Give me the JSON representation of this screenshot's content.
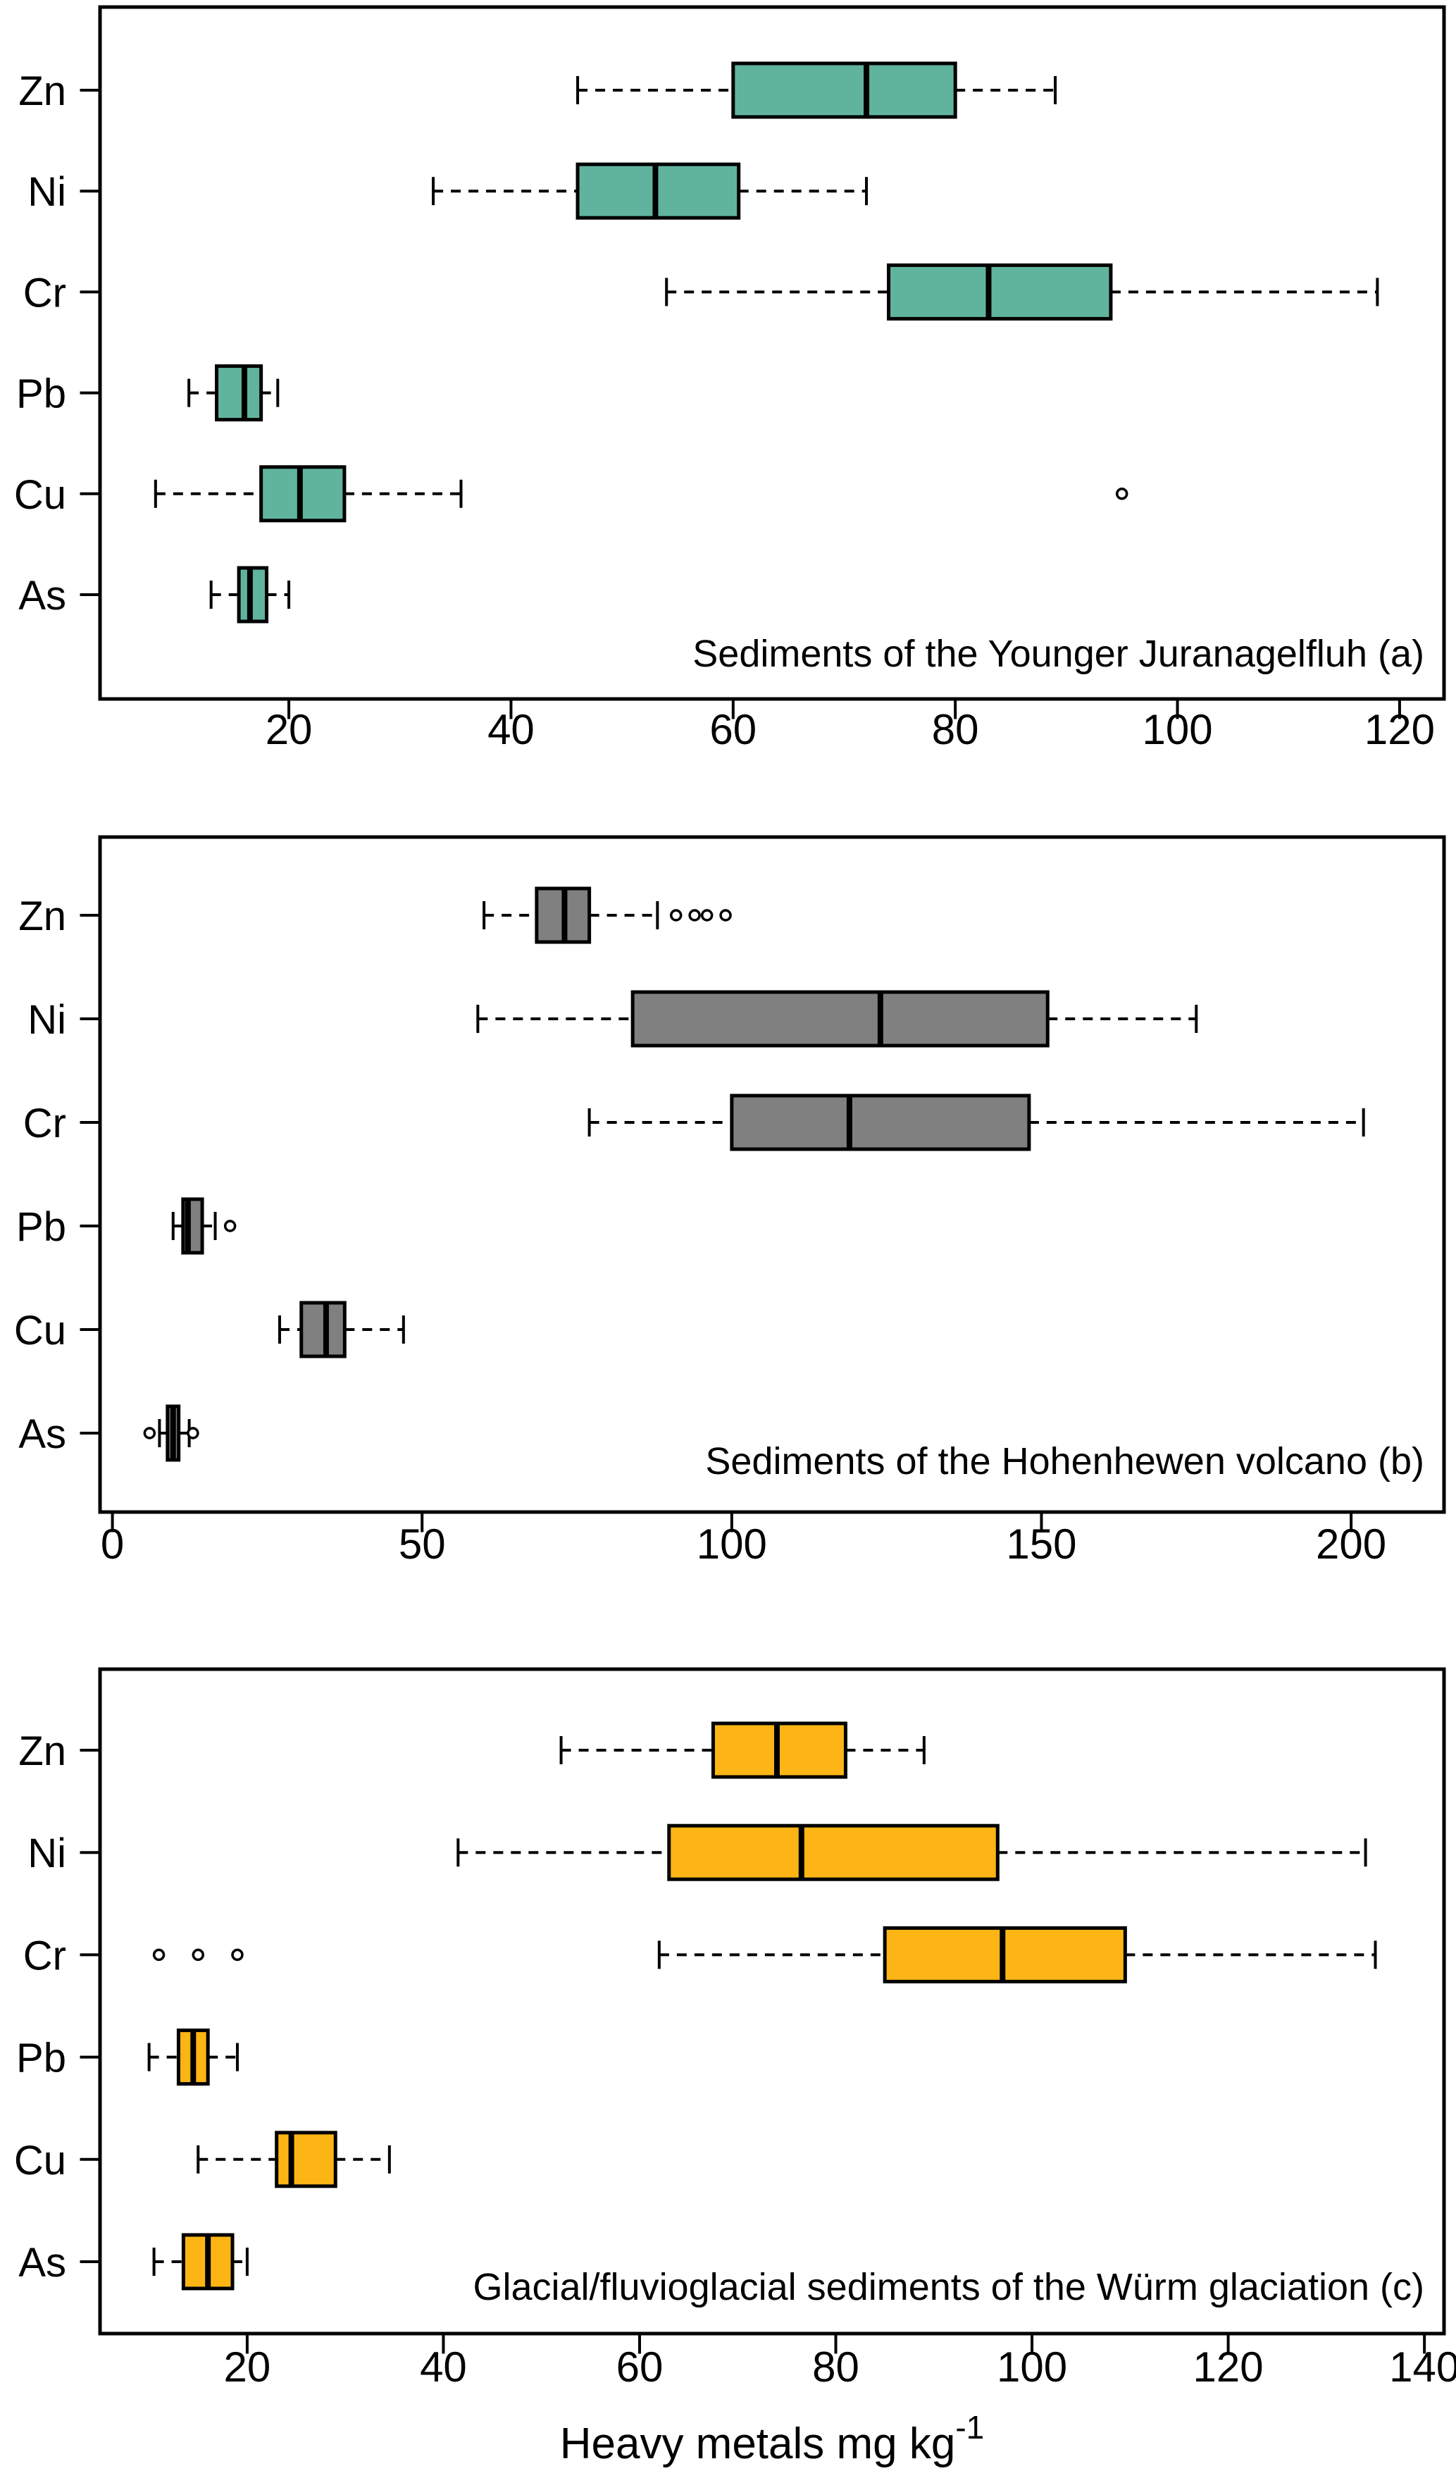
{
  "figure": {
    "background": "#ffffff",
    "line_color": "#000000",
    "x_axis_label": {
      "text": "Heavy metals mg kg",
      "superscript": "-1"
    }
  },
  "chart_data": [
    {
      "type": "boxplot",
      "orientation": "horizontal",
      "panel_letter": "a",
      "title": "Sediments of the Younger Juranagelfluh (a)",
      "box_fill": "#60B49E",
      "line_color": "#000000",
      "grid": false,
      "xlim": [
        3,
        124
      ],
      "xticks": [
        20,
        40,
        60,
        80,
        100,
        120
      ],
      "categories_top_to_bottom": [
        "Zn",
        "Ni",
        "Cr",
        "Pb",
        "Cu",
        "As"
      ],
      "stats": [
        {
          "category": "Zn",
          "whisker_low": 46,
          "q1": 60,
          "median": 72,
          "q3": 80,
          "whisker_high": 89,
          "outliers": []
        },
        {
          "category": "Ni",
          "whisker_low": 33,
          "q1": 46,
          "median": 53,
          "q3": 60.5,
          "whisker_high": 72,
          "outliers": []
        },
        {
          "category": "Cr",
          "whisker_low": 54,
          "q1": 74,
          "median": 83,
          "q3": 94,
          "whisker_high": 118,
          "outliers": []
        },
        {
          "category": "Pb",
          "whisker_low": 11,
          "q1": 13.5,
          "median": 16,
          "q3": 17.5,
          "whisker_high": 19,
          "outliers": []
        },
        {
          "category": "Cu",
          "whisker_low": 8,
          "q1": 17.5,
          "median": 21,
          "q3": 25,
          "whisker_high": 35.5,
          "outliers": [
            95
          ]
        },
        {
          "category": "As",
          "whisker_low": 13,
          "q1": 15.5,
          "median": 16.5,
          "q3": 18,
          "whisker_high": 20,
          "outliers": []
        }
      ]
    },
    {
      "type": "boxplot",
      "orientation": "horizontal",
      "panel_letter": "b",
      "title": "Sediments of the Hohenhewen volcano (b)",
      "box_fill": "#808080",
      "line_color": "#000000",
      "grid": false,
      "xlim": [
        -2,
        215
      ],
      "xticks": [
        0,
        50,
        100,
        150,
        200
      ],
      "categories_top_to_bottom": [
        "Zn",
        "Ni",
        "Cr",
        "Pb",
        "Cu",
        "As"
      ],
      "stats": [
        {
          "category": "Zn",
          "whisker_low": 60,
          "q1": 68.5,
          "median": 73,
          "q3": 77,
          "whisker_high": 88,
          "outliers": [
            91,
            94,
            96,
            99
          ]
        },
        {
          "category": "Ni",
          "whisker_low": 59,
          "q1": 84,
          "median": 124,
          "q3": 151,
          "whisker_high": 175,
          "outliers": []
        },
        {
          "category": "Cr",
          "whisker_low": 77,
          "q1": 100,
          "median": 119,
          "q3": 148,
          "whisker_high": 202,
          "outliers": []
        },
        {
          "category": "Pb",
          "whisker_low": 9.8,
          "q1": 11.4,
          "median": 12.2,
          "q3": 14.5,
          "whisker_high": 16.6,
          "outliers": [
            19
          ]
        },
        {
          "category": "Cu",
          "whisker_low": 27,
          "q1": 30.5,
          "median": 34.5,
          "q3": 37.5,
          "whisker_high": 47,
          "outliers": []
        },
        {
          "category": "As",
          "whisker_low": 7.6,
          "q1": 8.9,
          "median": 9.8,
          "q3": 10.7,
          "whisker_high": 12.4,
          "outliers": [
            6,
            13
          ]
        }
      ]
    },
    {
      "type": "boxplot",
      "orientation": "horizontal",
      "panel_letter": "c",
      "title": "Glacial/fluvioglacial sediments of the Würm glaciation (c)",
      "box_fill": "#FDB515",
      "line_color": "#000000",
      "grid": false,
      "xlim": [
        5,
        142
      ],
      "xticks": [
        20,
        40,
        60,
        80,
        100,
        120,
        140
      ],
      "categories_top_to_bottom": [
        "Zn",
        "Ni",
        "Cr",
        "Pb",
        "Cu",
        "As"
      ],
      "stats": [
        {
          "category": "Zn",
          "whisker_low": 52,
          "q1": 67.5,
          "median": 74,
          "q3": 81,
          "whisker_high": 89,
          "outliers": []
        },
        {
          "category": "Ni",
          "whisker_low": 41.5,
          "q1": 63,
          "median": 76.5,
          "q3": 96.5,
          "whisker_high": 134,
          "outliers": []
        },
        {
          "category": "Cr",
          "whisker_low": 62,
          "q1": 85,
          "median": 97,
          "q3": 109.5,
          "whisker_high": 135,
          "outliers": [
            11,
            15,
            19
          ]
        },
        {
          "category": "Pb",
          "whisker_low": 10,
          "q1": 13,
          "median": 14.5,
          "q3": 16,
          "whisker_high": 19,
          "outliers": []
        },
        {
          "category": "Cu",
          "whisker_low": 15,
          "q1": 23,
          "median": 24.5,
          "q3": 29,
          "whisker_high": 34.5,
          "outliers": []
        },
        {
          "category": "As",
          "whisker_low": 10.5,
          "q1": 13.5,
          "median": 16,
          "q3": 18.5,
          "whisker_high": 20,
          "outliers": []
        }
      ]
    }
  ]
}
